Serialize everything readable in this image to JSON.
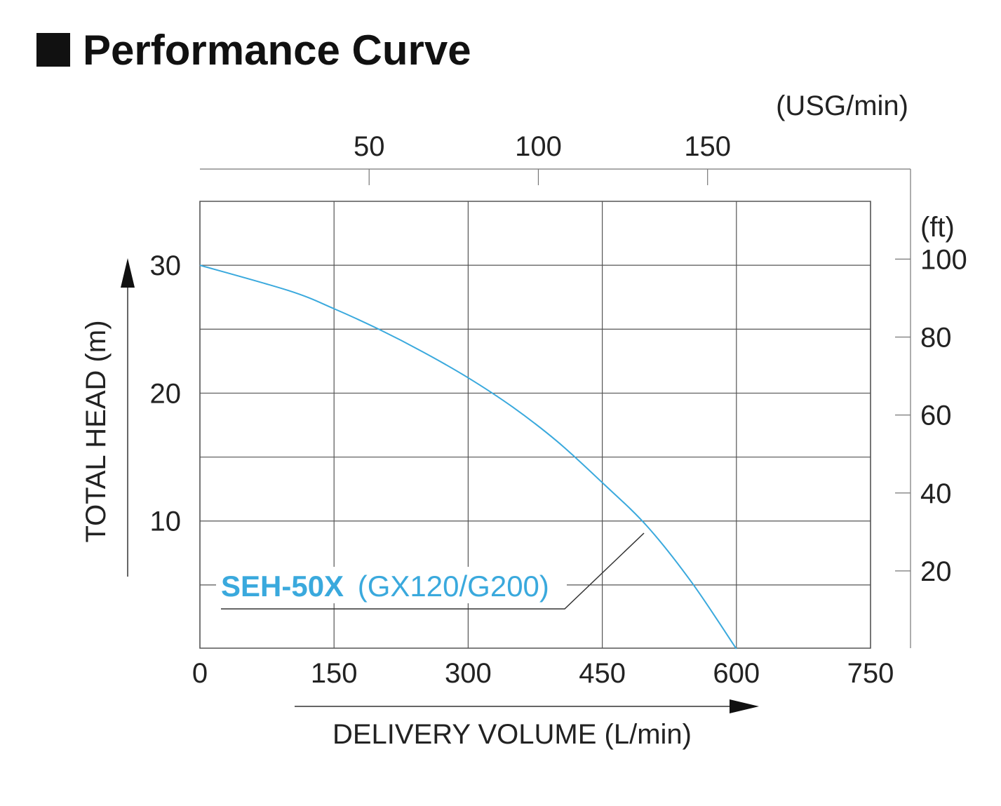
{
  "title": "Performance Curve",
  "chart_data": {
    "type": "line",
    "title": "Performance Curve",
    "xlabel": "DELIVERY VOLUME (L/min)",
    "ylabel": "TOTAL HEAD (m)",
    "xlim": [
      0,
      750
    ],
    "ylim": [
      0,
      35
    ],
    "x_ticks": [
      0,
      150,
      300,
      450,
      600,
      750
    ],
    "y_ticks": [
      10,
      20,
      30
    ],
    "secondary_x_axis": {
      "label": "(USG/min)",
      "ticks": [
        50,
        100,
        150
      ]
    },
    "secondary_y_axis": {
      "label": "(ft)",
      "ticks": [
        20,
        40,
        60,
        80,
        100
      ]
    },
    "grid": true,
    "series": [
      {
        "name": "SEH-50X",
        "annotation_model": "SEH-50X",
        "annotation_engine": "(GX120/G200)",
        "color": "#3aa9dd",
        "x": [
          0,
          100,
          150,
          200,
          250,
          300,
          350,
          400,
          450,
          500,
          550,
          600
        ],
        "y": [
          30,
          28,
          26.6,
          25,
          23.2,
          21.2,
          18.9,
          16.2,
          13,
          9.6,
          5.2,
          0
        ]
      }
    ]
  }
}
